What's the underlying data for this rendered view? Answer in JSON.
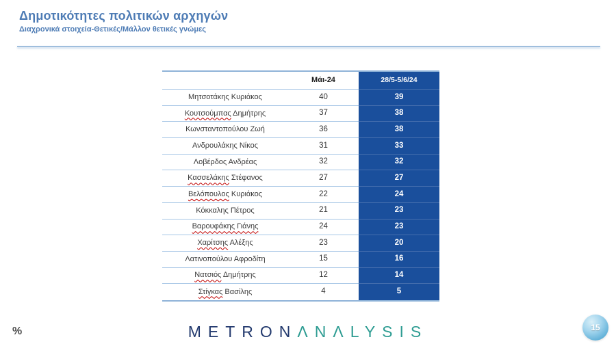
{
  "slide": {
    "title": "Δημοτικότητες πολιτικών αρχηγών",
    "subtitle": "Διαχρονικά στοιχεία-Θετικές/Μάλλον θετικές γνώμες",
    "percent_label": "%",
    "page_number": "15",
    "logo": {
      "part1": "METRON",
      "part2": "ΛNΛLYSIS"
    }
  },
  "colors": {
    "title_blue": "#4e7cb5",
    "table_dark_blue": "#1a4f9c",
    "row_border_blue": "#a5c5e5",
    "squiggle_red": "#c00000",
    "logo_navy": "#233a6e",
    "logo_teal": "#2d9c92",
    "badge_blue": "#64b2d9"
  },
  "table": {
    "headers": {
      "name": "",
      "may": "Μάι-24",
      "june": "28/5-5/6/24"
    },
    "rows": [
      {
        "marked": "",
        "rest": "Μητσοτάκης Κυριάκος",
        "may": "40",
        "june": "39"
      },
      {
        "marked": "Κουτσούμπας",
        "rest": " Δημήτρης",
        "may": "37",
        "june": "38"
      },
      {
        "marked": "",
        "rest": "Κωνσταντοπούλου Ζωή",
        "may": "36",
        "june": "38"
      },
      {
        "marked": "",
        "rest": "Ανδρουλάκης Νίκος",
        "may": "31",
        "june": "33"
      },
      {
        "marked": "",
        "rest": "Λοβέρδος Ανδρέας",
        "may": "32",
        "june": "32"
      },
      {
        "marked": "Κασσελάκης",
        "rest": " Στέφανος",
        "may": "27",
        "june": "27"
      },
      {
        "marked": "Βελόπουλος",
        "rest": " Κυριάκος",
        "may": "22",
        "june": "24"
      },
      {
        "marked": "",
        "rest": "Κόκκαλης Πέτρος",
        "may": "21",
        "june": "23"
      },
      {
        "marked": "Βαρουφάκης Γιάνης",
        "rest": "",
        "may": "24",
        "june": "23"
      },
      {
        "marked": "Χαρίτσης",
        "rest": " Αλέξης",
        "may": "23",
        "june": "20"
      },
      {
        "marked": "",
        "rest": "Λατινοπούλου Αφροδίτη",
        "may": "15",
        "june": "16"
      },
      {
        "marked": "Νατσιός",
        "rest": " Δημήτρης",
        "may": "12",
        "june": "14"
      },
      {
        "marked": "Στίγκας",
        "rest": " Βασίλης",
        "may": "4",
        "june": "5"
      }
    ]
  }
}
